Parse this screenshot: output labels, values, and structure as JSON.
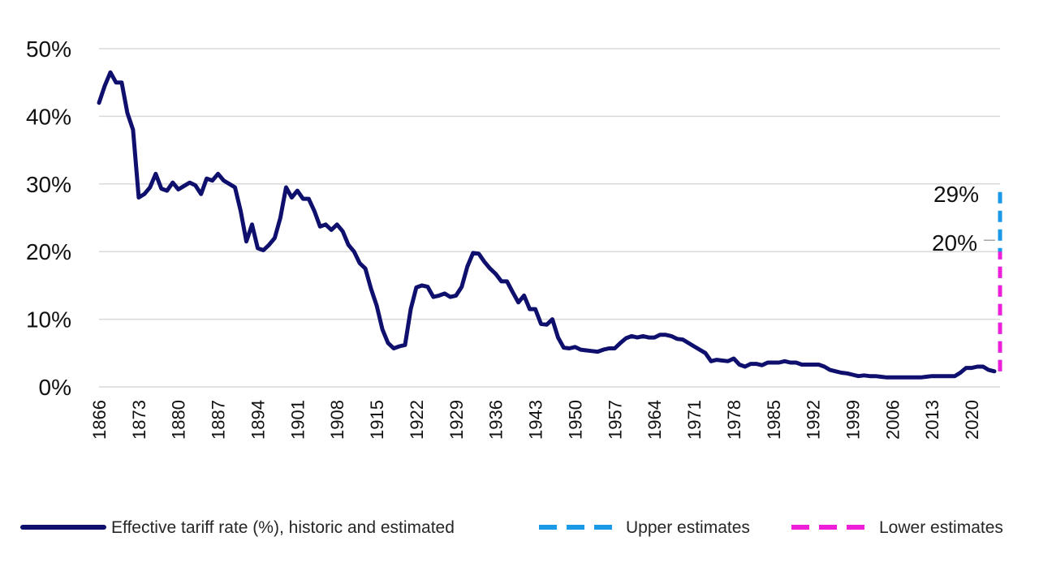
{
  "chart_data": {
    "type": "line",
    "title": "",
    "xlabel": "",
    "ylabel": "",
    "ylim": [
      0,
      50
    ],
    "xlim": [
      1866,
      2025
    ],
    "yticks": [
      {
        "value": 0,
        "label": "0%"
      },
      {
        "value": 10,
        "label": "10%"
      },
      {
        "value": 20,
        "label": "20%"
      },
      {
        "value": 30,
        "label": "30%"
      },
      {
        "value": 40,
        "label": "40%"
      },
      {
        "value": 50,
        "label": "50%"
      }
    ],
    "xtick_labels": [
      "1866",
      "1873",
      "1880",
      "1887",
      "1894",
      "1901",
      "1908",
      "1915",
      "1922",
      "1929",
      "1936",
      "1943",
      "1950",
      "1957",
      "1964",
      "1971",
      "1978",
      "1985",
      "1992",
      "1999",
      "2006",
      "2013",
      "2020"
    ],
    "grid": true,
    "legend_position": "bottom",
    "series": [
      {
        "name": "Effective tariff rate (%), historic and estimated",
        "color": "#0f0f6e",
        "style": "solid",
        "points": [
          [
            1866,
            42
          ],
          [
            1867,
            44.5
          ],
          [
            1868,
            46.5
          ],
          [
            1869,
            45
          ],
          [
            1870,
            45
          ],
          [
            1871,
            40.5
          ],
          [
            1872,
            38
          ],
          [
            1873,
            28
          ],
          [
            1874,
            28.5
          ],
          [
            1875,
            29.5
          ],
          [
            1876,
            31.5
          ],
          [
            1877,
            29.3
          ],
          [
            1878,
            29
          ],
          [
            1879,
            30.2
          ],
          [
            1880,
            29.2
          ],
          [
            1881,
            29.7
          ],
          [
            1882,
            30.2
          ],
          [
            1883,
            29.8
          ],
          [
            1884,
            28.5
          ],
          [
            1885,
            30.8
          ],
          [
            1886,
            30.5
          ],
          [
            1887,
            31.5
          ],
          [
            1888,
            30.5
          ],
          [
            1889,
            30
          ],
          [
            1890,
            29.5
          ],
          [
            1891,
            26
          ],
          [
            1892,
            21.5
          ],
          [
            1893,
            24
          ],
          [
            1894,
            20.5
          ],
          [
            1895,
            20.2
          ],
          [
            1896,
            21
          ],
          [
            1897,
            22
          ],
          [
            1898,
            25
          ],
          [
            1899,
            29.5
          ],
          [
            1900,
            28
          ],
          [
            1901,
            29
          ],
          [
            1902,
            27.8
          ],
          [
            1903,
            27.8
          ],
          [
            1904,
            26
          ],
          [
            1905,
            23.7
          ],
          [
            1906,
            24
          ],
          [
            1907,
            23.2
          ],
          [
            1908,
            24
          ],
          [
            1909,
            23
          ],
          [
            1910,
            21
          ],
          [
            1911,
            20
          ],
          [
            1912,
            18.3
          ],
          [
            1913,
            17.5
          ],
          [
            1914,
            14.5
          ],
          [
            1915,
            12
          ],
          [
            1916,
            8.5
          ],
          [
            1917,
            6.5
          ],
          [
            1918,
            5.7
          ],
          [
            1919,
            6
          ],
          [
            1920,
            6.2
          ],
          [
            1921,
            11.5
          ],
          [
            1922,
            14.7
          ],
          [
            1923,
            15
          ],
          [
            1924,
            14.8
          ],
          [
            1925,
            13.3
          ],
          [
            1926,
            13.5
          ],
          [
            1927,
            13.8
          ],
          [
            1928,
            13.3
          ],
          [
            1929,
            13.5
          ],
          [
            1930,
            14.8
          ],
          [
            1931,
            17.8
          ],
          [
            1932,
            19.8
          ],
          [
            1933,
            19.7
          ],
          [
            1934,
            18.5
          ],
          [
            1935,
            17.5
          ],
          [
            1936,
            16.7
          ],
          [
            1937,
            15.6
          ],
          [
            1938,
            15.6
          ],
          [
            1939,
            14
          ],
          [
            1940,
            12.5
          ],
          [
            1941,
            13.5
          ],
          [
            1942,
            11.5
          ],
          [
            1943,
            11.5
          ],
          [
            1944,
            9.3
          ],
          [
            1945,
            9.2
          ],
          [
            1946,
            10
          ],
          [
            1947,
            7.3
          ],
          [
            1948,
            5.8
          ],
          [
            1949,
            5.7
          ],
          [
            1950,
            5.9
          ],
          [
            1951,
            5.5
          ],
          [
            1952,
            5.4
          ],
          [
            1953,
            5.3
          ],
          [
            1954,
            5.2
          ],
          [
            1955,
            5.5
          ],
          [
            1956,
            5.7
          ],
          [
            1957,
            5.7
          ],
          [
            1958,
            6.5
          ],
          [
            1959,
            7.2
          ],
          [
            1960,
            7.5
          ],
          [
            1961,
            7.3
          ],
          [
            1962,
            7.5
          ],
          [
            1963,
            7.3
          ],
          [
            1964,
            7.3
          ],
          [
            1965,
            7.7
          ],
          [
            1966,
            7.7
          ],
          [
            1967,
            7.5
          ],
          [
            1968,
            7.1
          ],
          [
            1969,
            7
          ],
          [
            1970,
            6.5
          ],
          [
            1971,
            6
          ],
          [
            1972,
            5.5
          ],
          [
            1973,
            5
          ],
          [
            1974,
            3.8
          ],
          [
            1975,
            4
          ],
          [
            1976,
            3.9
          ],
          [
            1977,
            3.8
          ],
          [
            1978,
            4.2
          ],
          [
            1979,
            3.3
          ],
          [
            1980,
            3
          ],
          [
            1981,
            3.4
          ],
          [
            1982,
            3.4
          ],
          [
            1983,
            3.2
          ],
          [
            1984,
            3.6
          ],
          [
            1985,
            3.6
          ],
          [
            1986,
            3.6
          ],
          [
            1987,
            3.8
          ],
          [
            1988,
            3.6
          ],
          [
            1989,
            3.6
          ],
          [
            1990,
            3.3
          ],
          [
            1991,
            3.3
          ],
          [
            1992,
            3.3
          ],
          [
            1993,
            3.3
          ],
          [
            1994,
            3
          ],
          [
            1995,
            2.5
          ],
          [
            1996,
            2.3
          ],
          [
            1997,
            2.1
          ],
          [
            1998,
            2
          ],
          [
            1999,
            1.8
          ],
          [
            2000,
            1.6
          ],
          [
            2001,
            1.7
          ],
          [
            2002,
            1.6
          ],
          [
            2003,
            1.6
          ],
          [
            2004,
            1.5
          ],
          [
            2005,
            1.4
          ],
          [
            2006,
            1.4
          ],
          [
            2007,
            1.4
          ],
          [
            2008,
            1.4
          ],
          [
            2009,
            1.4
          ],
          [
            2010,
            1.4
          ],
          [
            2011,
            1.4
          ],
          [
            2012,
            1.5
          ],
          [
            2013,
            1.6
          ],
          [
            2014,
            1.6
          ],
          [
            2015,
            1.6
          ],
          [
            2016,
            1.6
          ],
          [
            2017,
            1.6
          ],
          [
            2018,
            2.1
          ],
          [
            2019,
            2.8
          ],
          [
            2020,
            2.8
          ],
          [
            2021,
            3
          ],
          [
            2022,
            3
          ],
          [
            2023,
            2.5
          ],
          [
            2024,
            2.3
          ]
        ]
      },
      {
        "name": "Upper estimates",
        "color": "#1a9ae6",
        "style": "dashed",
        "points": [
          [
            2025,
            2.3
          ],
          [
            2025,
            29
          ]
        ]
      },
      {
        "name": "Lower estimates",
        "color": "#ee1fd8",
        "style": "dashed",
        "points": [
          [
            2025,
            2.3
          ],
          [
            2025,
            20
          ]
        ]
      }
    ],
    "annotations": [
      {
        "id": "upper",
        "text": "29%",
        "x": 2025,
        "y": 29
      },
      {
        "id": "lower",
        "text": "20%",
        "x": 2025,
        "y": 20
      }
    ]
  }
}
